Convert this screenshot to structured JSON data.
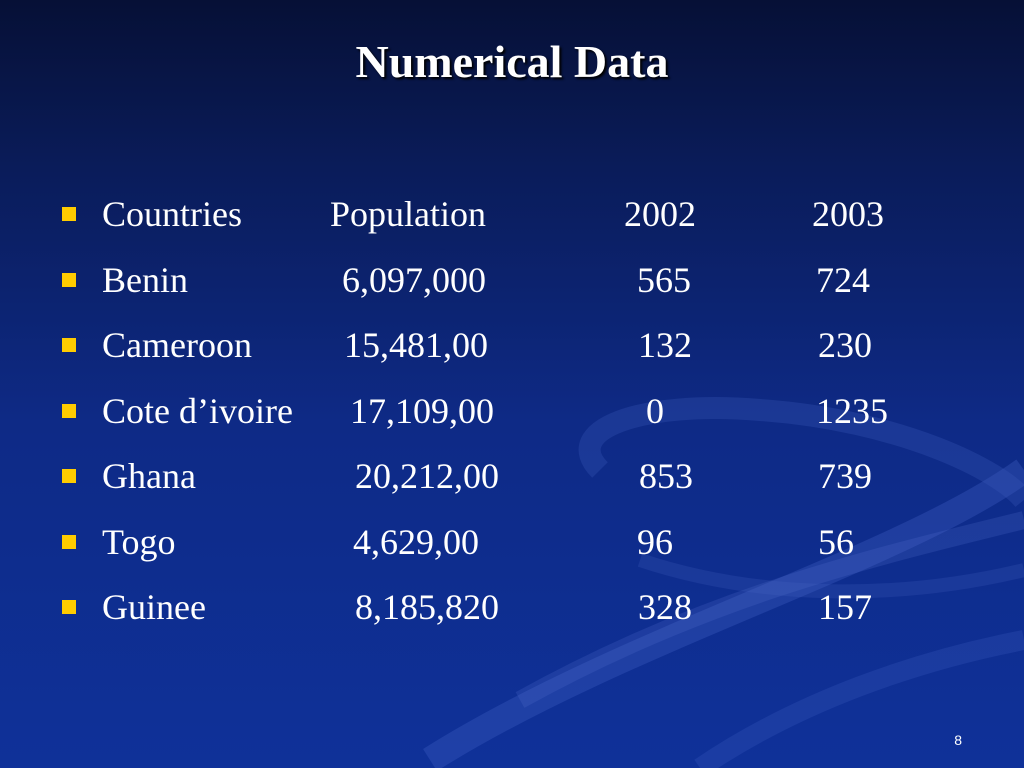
{
  "slide": {
    "title": "Numerical Data",
    "page_number": "8",
    "bullet_color": "#ffcc00"
  },
  "table": {
    "headers": {
      "country": "Countries",
      "population": "Population",
      "year1": "2002",
      "year2": "2003"
    },
    "rows": [
      {
        "country": "Benin",
        "population": "6,097,000",
        "year1": "565",
        "year2": "724"
      },
      {
        "country": "Cameroon",
        "population": "15,481,00",
        "year1": "132",
        "year2": "230"
      },
      {
        "country": "Cote d’ivoire",
        "population": "17,109,00",
        "year1": "0",
        "year2": "1235"
      },
      {
        "country": "Ghana",
        "population": "20,212,00",
        "year1": "853",
        "year2": "739"
      },
      {
        "country": "Togo",
        "population": "4,629,00",
        "year1": "96",
        "year2": "56"
      },
      {
        "country": "Guinee",
        "population": "8,185,820",
        "year1": "328",
        "year2": "157"
      }
    ]
  }
}
